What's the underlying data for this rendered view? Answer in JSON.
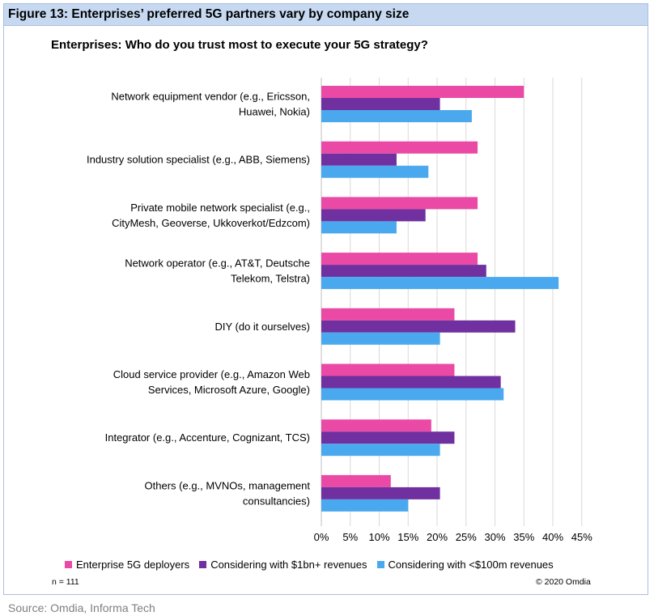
{
  "figure": {
    "title": "Figure 13: Enterprises’ preferred 5G partners vary by company size",
    "sample_note": "n = 111",
    "copyright": "© 2020 Omdia",
    "source": "Source: Omdia, Informa Tech"
  },
  "chart_data": {
    "type": "bar",
    "orientation": "horizontal",
    "title": "Enterprises: Who do you trust most to execute your 5G strategy?",
    "categories": [
      [
        "Network equipment vendor (e.g., Ericsson,",
        "Huawei, Nokia)"
      ],
      [
        "Industry solution specialist (e.g., ABB, Siemens)"
      ],
      [
        "Private mobile network specialist (e.g.,",
        "CityMesh, Geoverse, Ukkoverkot/Edzcom)"
      ],
      [
        "Network operator (e.g., AT&T, Deutsche",
        "Telekom, Telstra)"
      ],
      [
        "DIY (do it ourselves)"
      ],
      [
        "Cloud service provider (e.g., Amazon Web",
        "Services, Microsoft Azure, Google)"
      ],
      [
        "Integrator (e.g., Accenture, Cognizant, TCS)"
      ],
      [
        "Others (e.g., MVNOs, management",
        "consultancies)"
      ]
    ],
    "series": [
      {
        "name": "Enterprise 5G deployers",
        "color": "#ea4aa5",
        "values": [
          35,
          27,
          27,
          27,
          23,
          23,
          19,
          12
        ]
      },
      {
        "name": "Considering with $1bn+ revenues",
        "color": "#7030a0",
        "values": [
          20.5,
          13,
          18,
          28.5,
          33.5,
          31,
          23,
          20.5
        ]
      },
      {
        "name": "Considering with <$100m revenues",
        "color": "#4aa9ee",
        "values": [
          26,
          18.5,
          13,
          41,
          20.5,
          31.5,
          20.5,
          15
        ]
      }
    ],
    "x_ticks": [
      "0%",
      "5%",
      "10%",
      "15%",
      "20%",
      "25%",
      "30%",
      "35%",
      "40%",
      "45%"
    ],
    "xlim": [
      0,
      45
    ],
    "grid": true,
    "legend_position": "bottom"
  }
}
